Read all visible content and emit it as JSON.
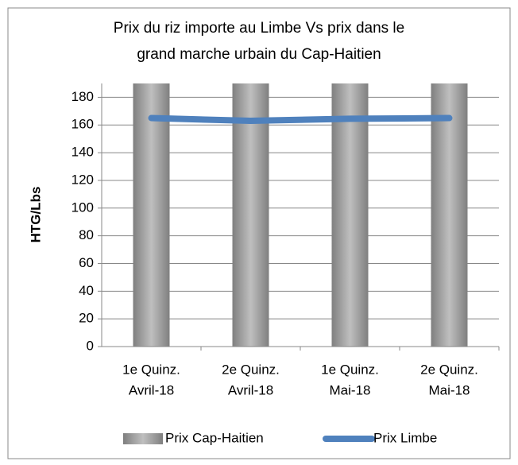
{
  "chart_data": {
    "type": "bar",
    "title": [
      "Prix du riz importe au Limbe Vs prix dans le",
      "grand marche urbain du Cap-Haitien"
    ],
    "y_label": "HTG/Lbs",
    "categories": [
      [
        "1e Quinz.",
        "Avril-18"
      ],
      [
        "2e Quinz.",
        "Avril-18"
      ],
      [
        "1e Quinz.",
        "Mai-18"
      ],
      [
        "2e Quinz.",
        "Mai-18"
      ]
    ],
    "series": [
      {
        "name": "Prix Cap-Haitien",
        "type": "bar",
        "color": "#a6a6a6",
        "values": [
          190,
          190,
          190,
          190
        ]
      },
      {
        "name": "Prix Limbe",
        "type": "line",
        "color": "#4f81bd",
        "values": [
          165,
          163,
          164.5,
          165
        ]
      }
    ],
    "ylim": [
      0,
      190
    ],
    "yticks": [
      0,
      20,
      40,
      60,
      80,
      100,
      120,
      140,
      160,
      180
    ],
    "grid": true,
    "legend": "bottom"
  }
}
